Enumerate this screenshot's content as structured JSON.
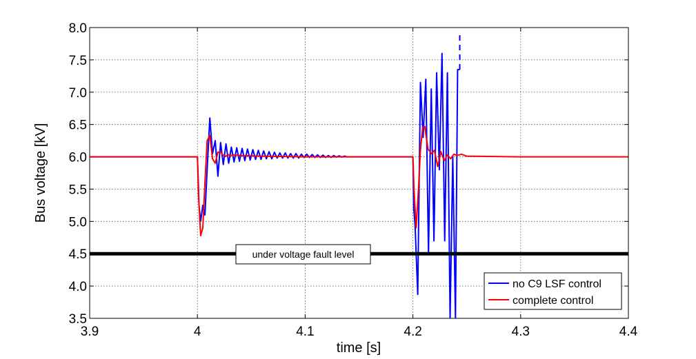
{
  "chart_data": {
    "type": "line",
    "title": "",
    "xlabel": "time [s]",
    "ylabel": "Bus voltage [kV]",
    "xlim": [
      3.9,
      4.4
    ],
    "ylim": [
      3.5,
      8.0
    ],
    "x_ticks": [
      3.9,
      4.0,
      4.1,
      4.2,
      4.3,
      4.4
    ],
    "x_tick_labels": [
      "3.9",
      "4",
      "4.1",
      "4.2",
      "4.3",
      "4.4"
    ],
    "y_ticks": [
      3.5,
      4.0,
      4.5,
      5.0,
      5.5,
      6.0,
      6.5,
      7.0,
      7.5,
      8.0
    ],
    "y_tick_labels": [
      "3.5",
      "4.0",
      "4.5",
      "5.0",
      "5.5",
      "6.0",
      "6.5",
      "7.0",
      "7.5",
      "8.0"
    ],
    "grid": true,
    "legend_position": "bottom-right",
    "series": [
      {
        "name": "no C9 LSF control",
        "color": "#0000ff",
        "x": [
          3.9,
          3.98,
          4.0,
          4.0008,
          4.0015,
          4.003,
          4.005,
          4.007,
          4.009,
          4.0115,
          4.014,
          4.0165,
          4.019,
          4.0215,
          4.024,
          4.0265,
          4.029,
          4.0315,
          4.034,
          4.0365,
          4.039,
          4.0415,
          4.044,
          4.0465,
          4.049,
          4.0515,
          4.054,
          4.0565,
          4.059,
          4.0615,
          4.064,
          4.0665,
          4.069,
          4.0715,
          4.074,
          4.0765,
          4.079,
          4.0815,
          4.084,
          4.0865,
          4.089,
          4.0915,
          4.094,
          4.0965,
          4.099,
          4.1015,
          4.104,
          4.1065,
          4.109,
          4.1115,
          4.114,
          4.1165,
          4.119,
          4.1215,
          4.124,
          4.1265,
          4.129,
          4.1315,
          4.134,
          4.1365,
          4.139,
          4.145,
          4.16,
          4.18,
          4.2,
          4.2008,
          4.202,
          4.2045,
          4.207,
          4.2095,
          4.212,
          4.2145,
          4.217,
          4.2195,
          4.222,
          4.2245,
          4.227,
          4.2295,
          4.232,
          4.2345,
          4.237,
          4.2395,
          4.2415,
          4.2435
        ],
        "values": [
          6.0,
          6.0,
          6.0,
          5.65,
          5.25,
          5.0,
          5.25,
          5.1,
          5.8,
          6.6,
          6.05,
          6.25,
          5.7,
          6.22,
          5.88,
          6.2,
          5.9,
          6.15,
          5.92,
          6.14,
          5.93,
          6.13,
          5.94,
          6.12,
          5.95,
          6.11,
          5.96,
          6.1,
          5.96,
          6.09,
          5.97,
          6.08,
          5.97,
          6.07,
          5.98,
          6.06,
          5.98,
          6.06,
          5.98,
          6.05,
          5.98,
          6.05,
          5.98,
          6.04,
          5.99,
          6.04,
          5.99,
          6.035,
          5.99,
          6.03,
          5.99,
          6.025,
          5.99,
          6.02,
          5.99,
          6.02,
          5.995,
          6.015,
          5.995,
          6.01,
          6.0,
          6.0,
          6.0,
          6.0,
          6.0,
          5.2,
          4.95,
          3.87,
          7.15,
          6.3,
          7.2,
          4.5,
          7.05,
          4.7,
          7.3,
          5.8,
          7.6,
          4.7,
          7.3,
          3.5,
          6.0,
          3.5,
          7.35,
          7.35
        ]
      },
      {
        "name": "complete control",
        "color": "#ff0000",
        "x": [
          3.9,
          3.98,
          4.0,
          4.001,
          4.003,
          4.005,
          4.007,
          4.009,
          4.0115,
          4.014,
          4.0165,
          4.019,
          4.0215,
          4.024,
          4.0265,
          4.029,
          4.0315,
          4.034,
          4.04,
          4.06,
          4.1,
          4.15,
          4.2,
          4.201,
          4.203,
          4.205,
          4.207,
          4.209,
          4.211,
          4.214,
          4.217,
          4.22,
          4.223,
          4.226,
          4.229,
          4.232,
          4.235,
          4.238,
          4.241,
          4.245,
          4.25,
          4.3,
          4.4
        ],
        "values": [
          6.0,
          6.0,
          6.0,
          5.4,
          4.78,
          4.9,
          5.6,
          6.25,
          6.33,
          5.97,
          5.9,
          6.07,
          6.08,
          6.02,
          6.01,
          6.03,
          6.02,
          6.03,
          6.02,
          6.01,
          6.0,
          6.0,
          6.0,
          5.5,
          4.9,
          5.45,
          6.1,
          6.45,
          6.47,
          6.12,
          6.05,
          6.1,
          5.85,
          6.08,
          5.94,
          6.03,
          5.97,
          6.04,
          6.02,
          6.04,
          6.01,
          6.0,
          6.0
        ]
      }
    ],
    "reference_line": {
      "y": 4.5,
      "color": "#000000",
      "label": "under voltage fault level"
    }
  }
}
